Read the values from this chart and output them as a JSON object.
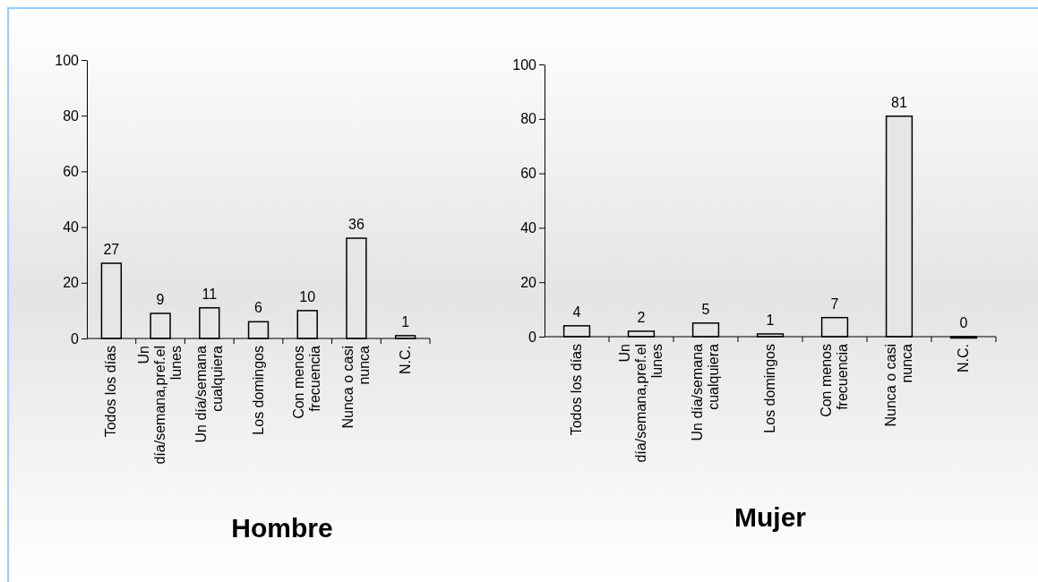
{
  "chart_data": [
    {
      "type": "bar",
      "title": "Hombre",
      "categories": [
        "Todos los días",
        "Un día/semana,pref.el lunes",
        "Un día/semana cualquiera",
        "Los domingos",
        "Con menos frecuencia",
        "Nunca o casi nunca",
        "N.C."
      ],
      "values": [
        27,
        9,
        11,
        6,
        10,
        36,
        1
      ],
      "color": "#e6e6e6",
      "ylim": [
        0,
        100
      ],
      "yticks": [
        0,
        20,
        40,
        60,
        80,
        100
      ],
      "data_labels": true
    },
    {
      "type": "bar",
      "title": "Mujer",
      "categories": [
        "Todos los días",
        "Un día/semana,pref.el lunes",
        "Un día/semana cualquiera",
        "Los domingos",
        "Con menos frecuencia",
        "Nunca o casi nunca",
        "N.C."
      ],
      "values": [
        4,
        2,
        5,
        1,
        7,
        81,
        0
      ],
      "color": "#e6e6e6",
      "ylim": [
        0,
        100
      ],
      "yticks": [
        0,
        20,
        40,
        60,
        80,
        100
      ],
      "data_labels": true
    }
  ]
}
